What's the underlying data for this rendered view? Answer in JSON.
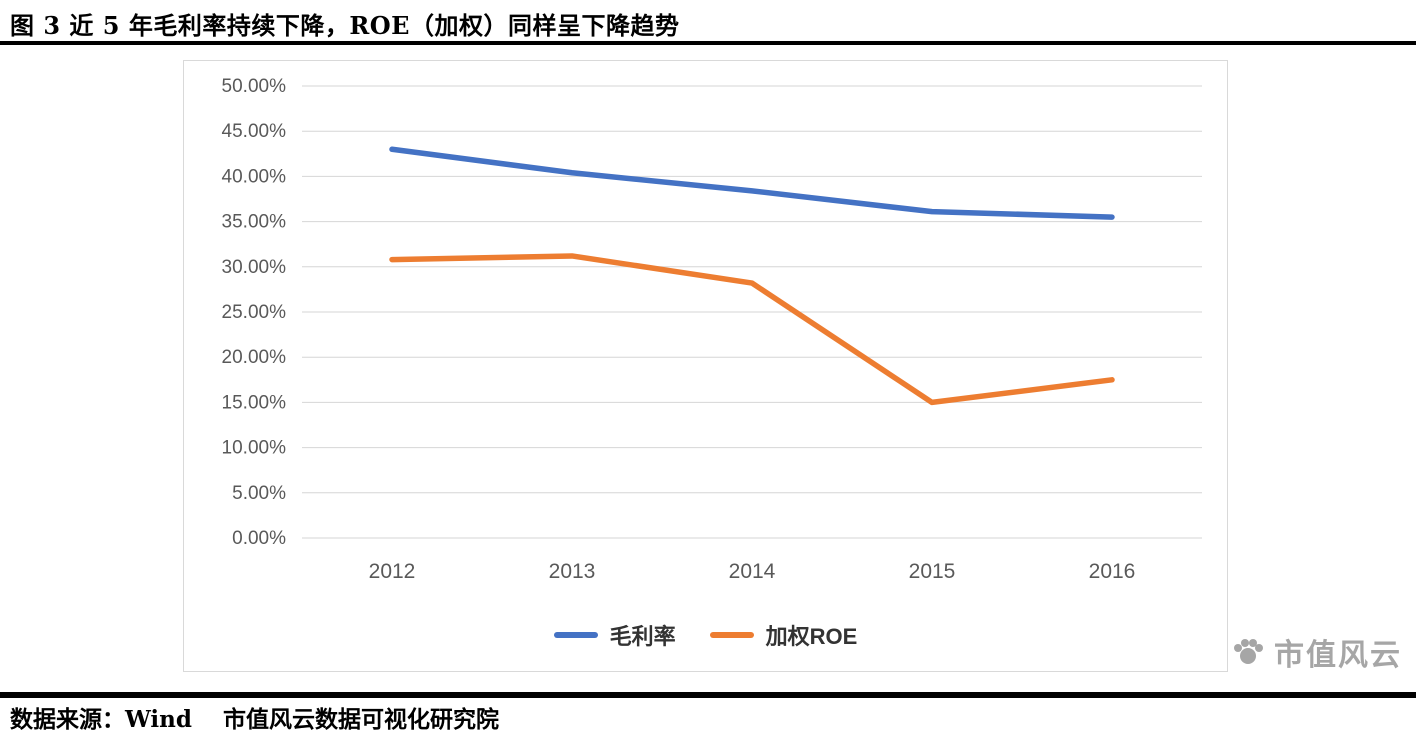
{
  "header": {
    "title": "图 3 近 5 年毛利率持续下降，ROE（加权）同样呈下降趋势"
  },
  "footer": {
    "source": "数据来源：Wind　 市值风云数据可视化研究院"
  },
  "watermark": {
    "text": "市值风云"
  },
  "chart_data": {
    "type": "line",
    "title": "",
    "xlabel": "",
    "ylabel": "",
    "categories": [
      "2012",
      "2013",
      "2014",
      "2015",
      "2016"
    ],
    "series": [
      {
        "name": "毛利率",
        "color": "#4472C4",
        "values": [
          43.0,
          40.4,
          38.4,
          36.1,
          35.5
        ]
      },
      {
        "name": "加权ROE",
        "color": "#ED7D31",
        "values": [
          30.8,
          31.2,
          28.2,
          15.0,
          17.5
        ]
      }
    ],
    "ylim": [
      0,
      50
    ],
    "ytick_step": 5,
    "ytick_decimals": 2,
    "ytick_suffix": "%",
    "grid": true,
    "legend_position": "bottom",
    "colors": {
      "grid": "#d6d6d6",
      "tick_text": "#595959"
    }
  }
}
